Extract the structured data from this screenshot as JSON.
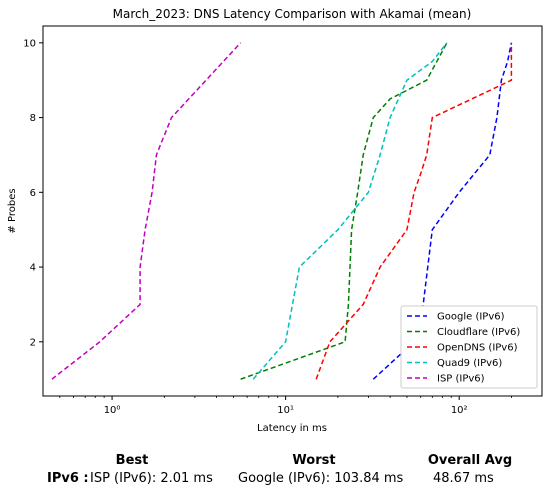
{
  "chart_data": {
    "type": "line",
    "title": "March_2023: DNS Latency Comparison with Akamai (mean)",
    "xlabel": "Latency in ms",
    "ylabel": "# Probes",
    "xscale": "log",
    "xlim": [
      0.4,
      300
    ],
    "ylim": [
      0.55,
      10.45
    ],
    "x_ticks": [
      {
        "value": 1,
        "label": "10⁰"
      },
      {
        "value": 10,
        "label": "10¹"
      },
      {
        "value": 100,
        "label": "10²"
      }
    ],
    "y_ticks": [
      2,
      4,
      6,
      8,
      10
    ],
    "grid": false,
    "legend": "bottom-right",
    "series": [
      {
        "name": "Google (IPv6)",
        "color": "#0000ff",
        "x": [
          32,
          55,
          62,
          70,
          100,
          150,
          165,
          175,
          190,
          200
        ],
        "y": [
          1,
          2,
          3,
          5,
          6,
          7,
          8,
          9,
          9.5,
          10
        ]
      },
      {
        "name": "Cloudflare (IPv6)",
        "color": "#008000",
        "x": [
          5.5,
          22,
          23,
          24,
          26,
          28,
          32,
          40,
          65,
          85
        ],
        "y": [
          1,
          2,
          3,
          5,
          6,
          7,
          8,
          8.5,
          9,
          10
        ]
      },
      {
        "name": "OpenDNS (IPv6)",
        "color": "#ff0000",
        "x": [
          15,
          18,
          28,
          35,
          50,
          55,
          60,
          65,
          70,
          200,
          200
        ],
        "y": [
          1,
          2,
          3,
          4,
          5,
          6,
          6.5,
          7,
          8,
          9,
          10
        ]
      },
      {
        "name": "Quad9 (IPv6)",
        "color": "#00bfbf",
        "x": [
          6.5,
          10,
          12,
          20,
          30,
          35,
          40,
          50,
          70,
          85
        ],
        "y": [
          1,
          2,
          4,
          5,
          6,
          7,
          8,
          9,
          9.5,
          10
        ]
      },
      {
        "name": "ISP (IPv6)",
        "color": "#bf00bf",
        "x": [
          0.45,
          0.85,
          1.45,
          1.45,
          1.55,
          1.7,
          1.8,
          2.2,
          5.5
        ],
        "y": [
          1,
          2,
          3,
          4,
          5,
          6,
          7,
          8,
          10
        ]
      }
    ]
  },
  "summary": {
    "headers": {
      "best": "Best",
      "worst": "Worst",
      "overall": "Overall Avg"
    },
    "row_label": "IPv6 :",
    "best": "ISP (IPv6): 2.01 ms",
    "worst": "Google (IPv6): 103.84 ms",
    "overall": "48.67 ms"
  }
}
